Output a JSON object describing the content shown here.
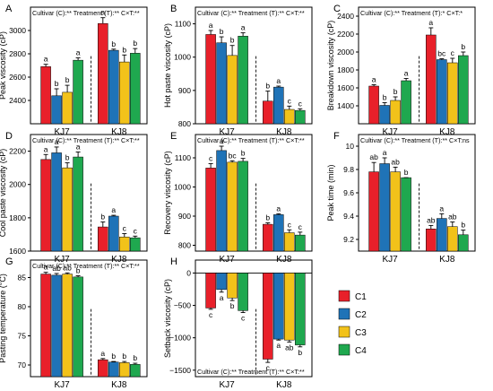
{
  "figure": {
    "groups": [
      "KJ7",
      "KJ8"
    ],
    "legend": [
      "C1",
      "C2",
      "C3",
      "C4"
    ],
    "colors": [
      "#e8202a",
      "#1f73b7",
      "#f2c21a",
      "#1fa84f"
    ]
  },
  "chart_data": [
    {
      "letter": "A",
      "type": "bar",
      "ylabel": "Peak viscosity (cP)",
      "stats": "Cultivar (C):**  Treatment (T):**  C×T:**",
      "stats_pos": "top",
      "ylim": [
        2200,
        3200
      ],
      "yticks": [
        2400,
        2600,
        2800,
        3000
      ],
      "categories": [
        "KJ7",
        "KJ8"
      ],
      "series": [
        {
          "name": "C1",
          "values": [
            2690,
            3060
          ],
          "errors": [
            20,
            50
          ],
          "letters": [
            "a",
            "a"
          ]
        },
        {
          "name": "C2",
          "values": [
            2440,
            2830
          ],
          "errors": [
            60,
            10
          ],
          "letters": [
            "b",
            "b"
          ]
        },
        {
          "name": "C3",
          "values": [
            2470,
            2730
          ],
          "errors": [
            60,
            60
          ],
          "letters": [
            "b",
            "b"
          ]
        },
        {
          "name": "C4",
          "values": [
            2745,
            2805
          ],
          "errors": [
            20,
            40
          ],
          "letters": [
            "a",
            "b"
          ]
        }
      ]
    },
    {
      "letter": "B",
      "type": "bar",
      "ylabel": "Hot paste viscosity (cP)",
      "stats": "Cultivar (C):**  Treatment (T):**  C×T:**",
      "stats_pos": "top",
      "ylim": [
        800,
        1150
      ],
      "yticks": [
        800,
        900,
        1000,
        1100
      ],
      "categories": [
        "KJ7",
        "KJ8"
      ],
      "series": [
        {
          "name": "C1",
          "values": [
            1068,
            868
          ],
          "errors": [
            12,
            30
          ],
          "letters": [
            "a",
            "b"
          ]
        },
        {
          "name": "C2",
          "values": [
            1043,
            910
          ],
          "errors": [
            18,
            3
          ],
          "letters": [
            "b",
            "a"
          ]
        },
        {
          "name": "C3",
          "values": [
            1005,
            843
          ],
          "errors": [
            30,
            10
          ],
          "letters": [
            "b",
            "c"
          ]
        },
        {
          "name": "C4",
          "values": [
            1063,
            840
          ],
          "errors": [
            10,
            5
          ],
          "letters": [
            "a",
            "c"
          ]
        }
      ]
    },
    {
      "letter": "C",
      "type": "bar",
      "ylabel": "Breakdown viscosity (cP)",
      "stats": "Cultivar (C):**  Treatment (T):*  C×T:*",
      "stats_pos": "top",
      "ylim": [
        1200,
        2500
      ],
      "yticks": [
        1400,
        1600,
        1800,
        2000,
        2200,
        2400
      ],
      "categories": [
        "KJ7",
        "KJ8"
      ],
      "series": [
        {
          "name": "C1",
          "values": [
            1620,
            2190
          ],
          "errors": [
            15,
            80
          ],
          "letters": [
            "a",
            "a"
          ]
        },
        {
          "name": "C2",
          "values": [
            1405,
            1915
          ],
          "errors": [
            30,
            10
          ],
          "letters": [
            "b",
            "bc"
          ]
        },
        {
          "name": "C3",
          "values": [
            1460,
            1880
          ],
          "errors": [
            40,
            50
          ],
          "letters": [
            "b",
            "c"
          ]
        },
        {
          "name": "C4",
          "values": [
            1680,
            1960
          ],
          "errors": [
            25,
            40
          ],
          "letters": [
            "a",
            "b"
          ]
        }
      ]
    },
    {
      "letter": "D",
      "type": "bar",
      "ylabel": "Cool paste viscosity (cP)",
      "stats": "Cultivar (C):**  Treatment (T):**  C×T:**",
      "stats_pos": "top",
      "ylim": [
        1600,
        2300
      ],
      "yticks": [
        1600,
        1800,
        2000,
        2200
      ],
      "categories": [
        "KJ7",
        "KJ8"
      ],
      "series": [
        {
          "name": "C1",
          "values": [
            2150,
            1745
          ],
          "errors": [
            30,
            30
          ],
          "letters": [
            "a",
            "b"
          ]
        },
        {
          "name": "C2",
          "values": [
            2190,
            1810
          ],
          "errors": [
            35,
            5
          ],
          "letters": [
            "a",
            "a"
          ]
        },
        {
          "name": "C3",
          "values": [
            2100,
            1685
          ],
          "errors": [
            30,
            20
          ],
          "letters": [
            "b",
            "c"
          ]
        },
        {
          "name": "C4",
          "values": [
            2165,
            1680
          ],
          "errors": [
            30,
            10
          ],
          "letters": [
            "a",
            "c"
          ]
        }
      ]
    },
    {
      "letter": "E",
      "type": "bar",
      "ylabel": "Recovery viscosity (cP)",
      "stats": "Cultivar (C):**  Treatment (T):**  C×T:**",
      "stats_pos": "top",
      "ylim": [
        780,
        1180
      ],
      "yticks": [
        800,
        900,
        1000,
        1100
      ],
      "categories": [
        "KJ7",
        "KJ8"
      ],
      "series": [
        {
          "name": "C1",
          "values": [
            1065,
            872
          ],
          "errors": [
            15,
            5
          ],
          "letters": [
            "c",
            "b"
          ]
        },
        {
          "name": "C2",
          "values": [
            1125,
            905
          ],
          "errors": [
            15,
            3
          ],
          "letters": [
            "a",
            "a"
          ]
        },
        {
          "name": "C3",
          "values": [
            1085,
            843
          ],
          "errors": [
            5,
            10
          ],
          "letters": [
            "bc",
            "c"
          ]
        },
        {
          "name": "C4",
          "values": [
            1088,
            835
          ],
          "errors": [
            10,
            10
          ],
          "letters": [
            "b",
            "c"
          ]
        }
      ]
    },
    {
      "letter": "F",
      "type": "bar",
      "ylabel": "Peak time (min)",
      "stats": "Cultivar (C):**  Treatment (T):**  C×T:ns",
      "stats_pos": "top",
      "ylim": [
        9.1,
        10.1
      ],
      "yticks": [
        9.2,
        9.4,
        9.6,
        9.8,
        10.0
      ],
      "categories": [
        "KJ7",
        "KJ8"
      ],
      "series": [
        {
          "name": "C1",
          "values": [
            9.78,
            9.29
          ],
          "errors": [
            0.08,
            0.03
          ],
          "letters": [
            "ab",
            "ab"
          ]
        },
        {
          "name": "C2",
          "values": [
            9.85,
            9.38
          ],
          "errors": [
            0.05,
            0.04
          ],
          "letters": [
            "a",
            "a"
          ]
        },
        {
          "name": "C3",
          "values": [
            9.78,
            9.31
          ],
          "errors": [
            0.04,
            0.04
          ],
          "letters": [
            "ab",
            "ab"
          ]
        },
        {
          "name": "C4",
          "values": [
            9.73,
            9.24
          ],
          "errors": [
            0.0,
            0.04
          ],
          "letters": [
            "b",
            "b"
          ]
        }
      ]
    },
    {
      "letter": "G",
      "type": "bar",
      "ylabel": "Pasting temperature (°C)",
      "stats": "Cultivar (C):**  Treatment (T):**  C×T:**",
      "stats_pos": "top",
      "ylim": [
        68,
        88
      ],
      "yticks": [
        70,
        75,
        80,
        85
      ],
      "categories": [
        "KJ7",
        "KJ8"
      ],
      "series": [
        {
          "name": "C1",
          "values": [
            85.6,
            70.9
          ],
          "errors": [
            0.3,
            0.2
          ],
          "letters": [
            "a",
            "a"
          ]
        },
        {
          "name": "C2",
          "values": [
            85.4,
            70.5
          ],
          "errors": [
            0.3,
            0.1
          ],
          "letters": [
            "ab",
            "b"
          ]
        },
        {
          "name": "C3",
          "values": [
            85.6,
            70.4
          ],
          "errors": [
            0.2,
            0.2
          ],
          "letters": [
            "ab",
            "b"
          ]
        },
        {
          "name": "C4",
          "values": [
            85.1,
            70.1
          ],
          "errors": [
            0.2,
            0.2
          ],
          "letters": [
            "b",
            "b"
          ]
        }
      ]
    },
    {
      "letter": "H",
      "type": "bar",
      "ylabel": "Setback viscosity (cP)",
      "stats": "Cultivar (C):**  Treatment (T):**  C×T:**",
      "stats_pos": "bottom",
      "ylim": [
        -1600,
        200
      ],
      "yticks": [
        -1500,
        -1000,
        -500,
        0
      ],
      "categories": [
        "KJ7",
        "KJ8"
      ],
      "series": [
        {
          "name": "C1",
          "values": [
            -540,
            -1330
          ],
          "errors": [
            20,
            50
          ],
          "letters": [
            "c",
            "c"
          ]
        },
        {
          "name": "C2",
          "values": [
            -255,
            -1020
          ],
          "errors": [
            40,
            15
          ],
          "letters": [
            "a",
            "a"
          ]
        },
        {
          "name": "C3",
          "values": [
            -385,
            -1035
          ],
          "errors": [
            40,
            30
          ],
          "letters": [
            "b",
            "ab"
          ]
        },
        {
          "name": "C4",
          "values": [
            -580,
            -1110
          ],
          "errors": [
            30,
            30
          ],
          "letters": [
            "c",
            "b"
          ]
        }
      ]
    }
  ]
}
